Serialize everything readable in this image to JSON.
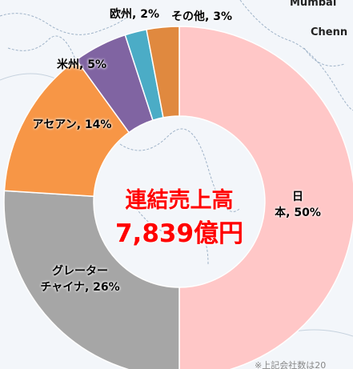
{
  "chart_data": {
    "type": "donut",
    "categories": [
      "日本",
      "グレーター\nチャイナ",
      "アセアン",
      "米州",
      "欧州",
      "その他"
    ],
    "values": [
      50,
      26,
      14,
      5,
      2,
      3
    ],
    "value_labels": [
      "50%",
      "26%",
      "14%",
      "5%",
      "2%",
      "3%"
    ],
    "colors": [
      "#ffc7c7",
      "#a6a6a6",
      "#f79646",
      "#8064a2",
      "#4bacc6",
      "#e0893f"
    ],
    "center_title": "連結売上高",
    "center_value": "7,839億円"
  },
  "background": {
    "map_labels": [
      "Mumbai",
      "Chenn"
    ],
    "footnote": "※上記会社数は20"
  }
}
